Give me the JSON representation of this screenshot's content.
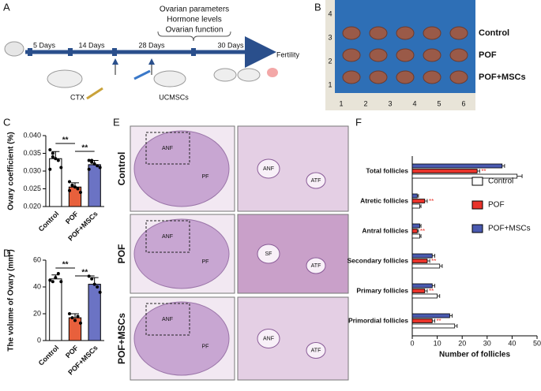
{
  "panel_labels": [
    "A",
    "B",
    "C",
    "D",
    "E",
    "F"
  ],
  "timeline": {
    "intervals": [
      "5 Days",
      "14 Days",
      "28 Days",
      "30 Days"
    ],
    "treatments": [
      "CTX",
      "UCMSCs"
    ],
    "endpoint": "Fertility",
    "outcomes": [
      "Ovarian parameters",
      "Hormone levels",
      "Ovarian function"
    ]
  },
  "photo": {
    "groups": [
      "Control",
      "POF",
      "POF+MSCs"
    ],
    "ruler_x": [
      "1",
      "2",
      "3",
      "4",
      "5",
      "6"
    ],
    "ruler_y": [
      "4",
      "3",
      "2",
      "1"
    ]
  },
  "histology": {
    "rows": [
      "Control",
      "POF",
      "POF+MSCs"
    ],
    "labels": [
      "ANF",
      "ATF",
      "SF",
      "PF"
    ]
  },
  "chart_data": [
    {
      "type": "bar",
      "ylabel": "Ovary coefficient (%)",
      "categories": [
        "Control",
        "POF",
        "POF+MSCs"
      ],
      "colors": [
        "#ffffff",
        "#e8603c",
        "#6b73c4"
      ],
      "values": [
        0.0335,
        0.0255,
        0.0318
      ],
      "errors": [
        0.002,
        0.0012,
        0.0012
      ],
      "points": [
        [
          0.036,
          0.034,
          0.0335,
          0.033,
          0.031,
          0.0305,
          0.035
        ],
        [
          0.027,
          0.026,
          0.0255,
          0.025,
          0.024,
          0.0245,
          0.026
        ],
        [
          0.033,
          0.0325,
          0.032,
          0.0315,
          0.031,
          0.0305,
          0.033
        ]
      ],
      "ylim": [
        0.02,
        0.04
      ],
      "yticks": [
        {
          "value": 0.02,
          "label": "0.020"
        },
        {
          "value": 0.025,
          "label": "0.025"
        },
        {
          "value": 0.03,
          "label": "0.030"
        },
        {
          "value": 0.035,
          "label": "0.035"
        },
        {
          "value": 0.04,
          "label": "0.040"
        }
      ],
      "annotations": [
        "**",
        "**"
      ]
    },
    {
      "type": "bar",
      "ylabel": "The volume of Ovary (mm³)",
      "categories": [
        "Control",
        "POF",
        "POF+MSCs"
      ],
      "colors": [
        "#ffffff",
        "#e8603c",
        "#6b73c4"
      ],
      "values": [
        46,
        17,
        42
      ],
      "errors": [
        3,
        3,
        5
      ],
      "points": [
        [
          45,
          44,
          47,
          50,
          44
        ],
        [
          20,
          17,
          15,
          18,
          13
        ],
        [
          48,
          46,
          42,
          40,
          36
        ]
      ],
      "ylim": [
        0,
        60
      ],
      "yticks": [
        0,
        20,
        40,
        60
      ],
      "annotations": [
        "**",
        "**"
      ]
    },
    {
      "type": "barh",
      "xlabel": "Number of follicles",
      "categories": [
        "Total follicles",
        "Atretic follicles",
        "Antral follicles",
        "Secondary follicles",
        "Primary follicles",
        "Primordial follicles"
      ],
      "series": [
        {
          "name": "Control",
          "color": "#ffffff",
          "values": [
            42,
            3,
            3,
            11,
            10,
            17
          ],
          "errors": [
            2,
            0.5,
            0.5,
            1,
            1,
            1
          ]
        },
        {
          "name": "POF",
          "color": "#e8332a",
          "values": [
            26,
            5,
            2,
            6,
            5,
            8
          ],
          "errors": [
            1,
            1,
            0.5,
            1,
            1,
            1
          ]
        },
        {
          "name": "POF+MSCs",
          "color": "#4a5ab0",
          "values": [
            36,
            2,
            3,
            8,
            8,
            15
          ],
          "errors": [
            1,
            0.5,
            0.5,
            1,
            1,
            1
          ]
        }
      ],
      "xlim": [
        0,
        50
      ],
      "xticks": [
        0,
        10,
        20,
        30,
        40,
        50
      ],
      "annotation": "**"
    }
  ]
}
